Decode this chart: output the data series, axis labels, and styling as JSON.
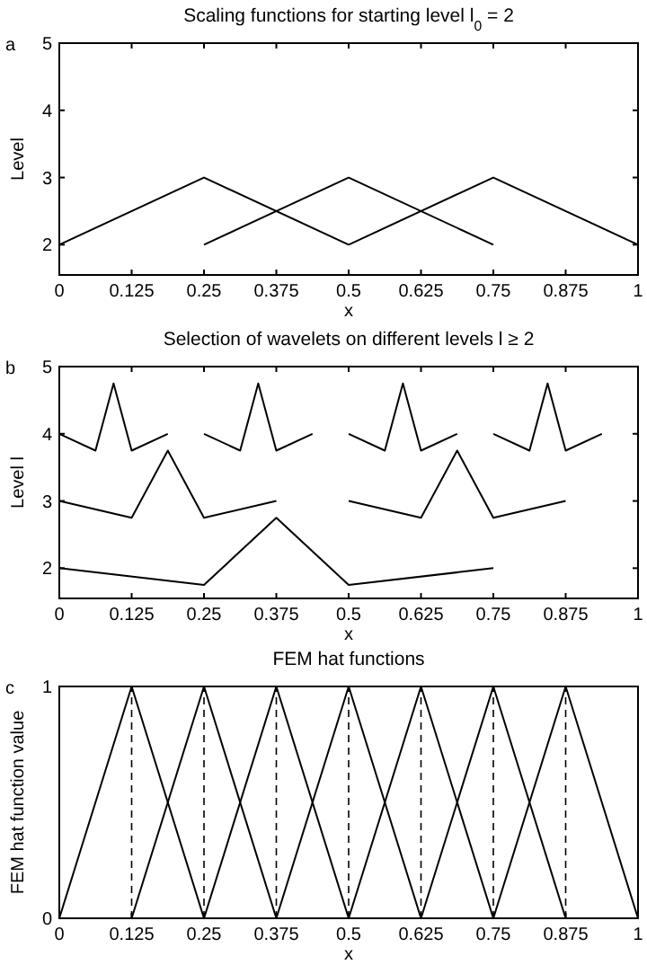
{
  "chart_data": [
    {
      "type": "line",
      "title": "Scaling functions for starting level l$_{0}$ = 2",
      "xlabel": "x",
      "ylabel": "Level",
      "annotations": [
        "a"
      ],
      "xlim": [
        0,
        1
      ],
      "ylim": [
        1.55,
        5
      ],
      "xticks": [
        0,
        0.125,
        0.25,
        0.375,
        0.5,
        0.625,
        0.75,
        0.875,
        1
      ],
      "yticks": [
        2,
        3,
        4,
        5
      ],
      "line_style": "solid",
      "marker": "none",
      "series": [
        {
          "color": "#000000",
          "x": [
            0,
            0.25,
            0.5
          ],
          "values": [
            2,
            3,
            2
          ]
        },
        {
          "color": "#000000",
          "x": [
            0.25,
            0.5,
            0.75
          ],
          "values": [
            2,
            3,
            2
          ]
        },
        {
          "color": "#000000",
          "x": [
            0.5,
            0.75,
            1
          ],
          "values": [
            2,
            3,
            2
          ]
        }
      ]
    },
    {
      "type": "line",
      "title": "Selection of wavelets on different levels l ≥ 2",
      "xlabel": "x",
      "ylabel": "Level l",
      "annotations": [
        "b"
      ],
      "xlim": [
        0,
        1
      ],
      "ylim": [
        1.55,
        5
      ],
      "xticks": [
        0,
        0.125,
        0.25,
        0.375,
        0.5,
        0.625,
        0.75,
        0.875,
        1
      ],
      "yticks": [
        2,
        3,
        4,
        5
      ],
      "line_style": "solid",
      "marker": "none",
      "series": [
        {
          "color": "#000000",
          "x": [
            0,
            0.25,
            0.375,
            0.5,
            0.75
          ],
          "values": [
            2,
            1.75,
            2.75,
            1.75,
            2
          ]
        },
        {
          "color": "#000000",
          "x": [
            0,
            0.125,
            0.1875,
            0.25,
            0.375
          ],
          "values": [
            3,
            2.75,
            3.75,
            2.75,
            3
          ]
        },
        {
          "color": "#000000",
          "x": [
            0.5,
            0.625,
            0.6875,
            0.75,
            0.875
          ],
          "values": [
            3,
            2.75,
            3.75,
            2.75,
            3
          ]
        },
        {
          "color": "#000000",
          "x": [
            0,
            0.0625,
            0.09375,
            0.125,
            0.1875
          ],
          "values": [
            4,
            3.75,
            4.75,
            3.75,
            4
          ]
        },
        {
          "color": "#000000",
          "x": [
            0.25,
            0.3125,
            0.34375,
            0.375,
            0.4375
          ],
          "values": [
            4,
            3.75,
            4.75,
            3.75,
            4
          ]
        },
        {
          "color": "#000000",
          "x": [
            0.5,
            0.5625,
            0.59375,
            0.625,
            0.6875
          ],
          "values": [
            4,
            3.75,
            4.75,
            3.75,
            4
          ]
        },
        {
          "color": "#000000",
          "x": [
            0.75,
            0.8125,
            0.84375,
            0.875,
            0.9375
          ],
          "values": [
            4,
            3.75,
            4.75,
            3.75,
            4
          ]
        }
      ]
    },
    {
      "type": "line",
      "title": "FEM hat functions",
      "xlabel": "x",
      "ylabel": "FEM hat function value",
      "annotations": [
        "c"
      ],
      "xlim": [
        0,
        1
      ],
      "ylim": [
        0,
        1
      ],
      "xticks": [
        0,
        0.125,
        0.25,
        0.375,
        0.5,
        0.625,
        0.75,
        0.875,
        1
      ],
      "yticks": [
        0,
        1
      ],
      "line_style": "solid",
      "marker": "none",
      "series": [
        {
          "color": "#000000",
          "x": [
            0,
            0.125,
            0.25
          ],
          "values": [
            0,
            1,
            0
          ]
        },
        {
          "color": "#000000",
          "x": [
            0.125,
            0.25,
            0.375
          ],
          "values": [
            0,
            1,
            0
          ]
        },
        {
          "color": "#000000",
          "x": [
            0.25,
            0.375,
            0.5
          ],
          "values": [
            0,
            1,
            0
          ]
        },
        {
          "color": "#000000",
          "x": [
            0.375,
            0.5,
            0.625
          ],
          "values": [
            0,
            1,
            0
          ]
        },
        {
          "color": "#000000",
          "x": [
            0.5,
            0.625,
            0.75
          ],
          "values": [
            0,
            1,
            0
          ]
        },
        {
          "color": "#000000",
          "x": [
            0.625,
            0.75,
            0.875
          ],
          "values": [
            0,
            1,
            0
          ]
        },
        {
          "color": "#000000",
          "x": [
            0.75,
            0.875,
            1
          ],
          "values": [
            0,
            1,
            0
          ]
        }
      ],
      "ref_lines": [
        {
          "axis": "x",
          "value": 0.125,
          "line_style": "dashed"
        },
        {
          "axis": "x",
          "value": 0.25,
          "line_style": "dashed"
        },
        {
          "axis": "x",
          "value": 0.375,
          "line_style": "dashed"
        },
        {
          "axis": "x",
          "value": 0.5,
          "line_style": "dashed"
        },
        {
          "axis": "x",
          "value": 0.625,
          "line_style": "dashed"
        },
        {
          "axis": "x",
          "value": 0.75,
          "line_style": "dashed"
        },
        {
          "axis": "x",
          "value": 0.875,
          "line_style": "dashed"
        }
      ]
    }
  ]
}
